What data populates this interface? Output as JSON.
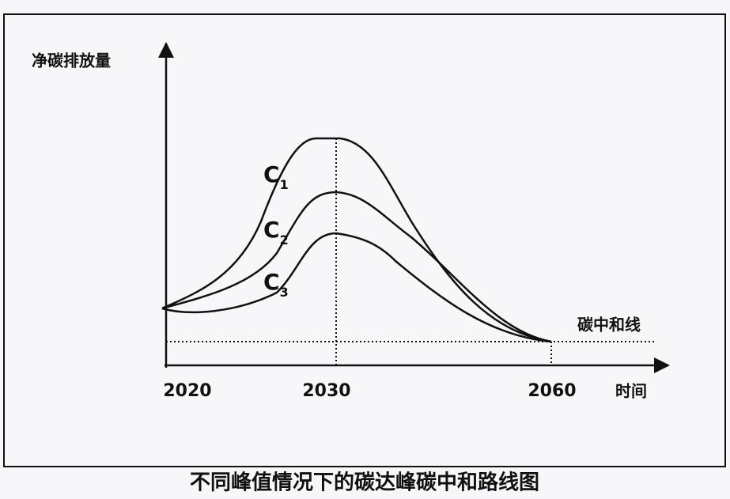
{
  "diagram": {
    "y_axis_label": "净碳排放量",
    "x_axis_label": "时间",
    "x_labels": [
      "2020",
      "2030",
      "2060"
    ],
    "curves": [
      {
        "main": "C",
        "sub": "1"
      },
      {
        "main": "C",
        "sub": "2"
      },
      {
        "main": "C",
        "sub": "3"
      }
    ],
    "neutral_line_label": "碳中和线",
    "caption": "不同峰值情况下的碳达峰碳中和路线图"
  }
}
